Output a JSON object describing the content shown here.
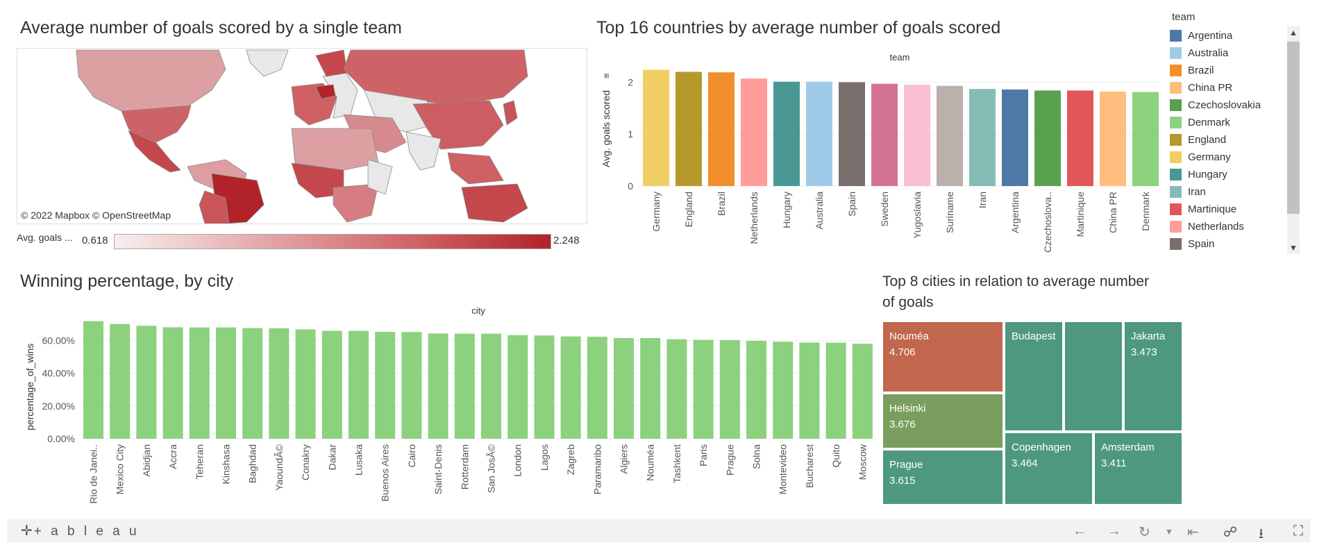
{
  "map": {
    "title": "Average number of goals scored by a single team",
    "credit": "© 2022 Mapbox  © OpenStreetMap",
    "legend_label": "Avg. goals ...",
    "legend_min": "0.618",
    "legend_max": "2.248",
    "colors": {
      "low": "#f8eeee",
      "high": "#b12328",
      "no_data": "#e8e8e8"
    }
  },
  "top_countries": {
    "title": "Top 16 countries by average number of goals scored"
  },
  "legend": {
    "title": "team",
    "items": [
      {
        "label": "Argentina",
        "color": "#4e79a7"
      },
      {
        "label": "Australia",
        "color": "#a0cbe8"
      },
      {
        "label": "Brazil",
        "color": "#f28e2b"
      },
      {
        "label": "China PR",
        "color": "#ffbe7d"
      },
      {
        "label": "Czechoslovakia",
        "color": "#59a14f"
      },
      {
        "label": "Denmark",
        "color": "#8cd17d"
      },
      {
        "label": "England",
        "color": "#b6992d"
      },
      {
        "label": "Germany",
        "color": "#f1ce63"
      },
      {
        "label": "Hungary",
        "color": "#499894"
      },
      {
        "label": "Iran",
        "color": "#86bcb6"
      },
      {
        "label": "Martinique",
        "color": "#e15759"
      },
      {
        "label": "Netherlands",
        "color": "#ff9d9a"
      },
      {
        "label": "Spain",
        "color": "#79706e"
      }
    ]
  },
  "win_pct": {
    "title": "Winning percentage, by city"
  },
  "treemap": {
    "title_line1": "Top 8 cities in relation to average number",
    "title_line2": "of goals",
    "cells": [
      {
        "city": "Nouméa",
        "value": "4.706",
        "color": "#c0674d"
      },
      {
        "city": "Helsinki",
        "value": "3.676",
        "color": "#7a9e5f"
      },
      {
        "city": "Prague",
        "value": "3.615",
        "color": "#4e9880"
      },
      {
        "city": "Budapest",
        "value": "",
        "color": "#4e9880"
      },
      {
        "city": "",
        "value": "",
        "color": "#4e9880"
      },
      {
        "city": "Jakarta",
        "value": "3.473",
        "color": "#4e9880"
      },
      {
        "city": "Copenhagen",
        "value": "3.464",
        "color": "#4e9880"
      },
      {
        "city": "Amsterdam",
        "value": "3.411",
        "color": "#4e9880"
      }
    ]
  },
  "footer": {
    "logo": "+ a b l e a u"
  },
  "chart_data": [
    {
      "type": "bar",
      "title": "Top 16 countries by average number of goals scored",
      "header": "team",
      "xlabel": "",
      "ylabel": "Avg. goals scored",
      "ylim": [
        0,
        2.3
      ],
      "yticks": [
        "0",
        "1",
        "2"
      ],
      "categories": [
        "Germany",
        "England",
        "Brazil",
        "Netherlands",
        "Hungary",
        "Australia",
        "Spain",
        "Sweden",
        "Yugoslavia",
        "Suriname",
        "Iran",
        "Argentina",
        "Czechoslova..",
        "Martinique",
        "China PR",
        "Denmark"
      ],
      "values": [
        2.24,
        2.2,
        2.19,
        2.07,
        2.01,
        2.01,
        2.0,
        1.97,
        1.95,
        1.93,
        1.87,
        1.86,
        1.84,
        1.84,
        1.82,
        1.81
      ],
      "colors": [
        "#f1ce63",
        "#b6992d",
        "#f28e2b",
        "#ff9d9a",
        "#499894",
        "#a0cbe8",
        "#79706e",
        "#d37295",
        "#fabfd2",
        "#bab0ac",
        "#86bcb6",
        "#4e79a7",
        "#59a14f",
        "#e15759",
        "#ffbe7d",
        "#8cd17d"
      ]
    },
    {
      "type": "bar",
      "title": "Winning percentage, by city",
      "header": "city",
      "ylabel": "percentage_of_wins",
      "ylim": [
        0,
        0.72
      ],
      "yticks": [
        "0.00%",
        "20.00%",
        "40.00%",
        "60.00%"
      ],
      "color": "#8cd17d",
      "categories": [
        "Rio de Janei..",
        "Mexico City",
        "Abidjan",
        "Accra",
        "Teheran",
        "Kinshasa",
        "Baghdad",
        "YaoundÃ©",
        "Conakry",
        "Dakar",
        "Lusaka",
        "Buenos Aires",
        "Cairo",
        "Saint-Denis",
        "Rotterdam",
        "San JosÃ©",
        "London",
        "Lagos",
        "Zagreb",
        "Paramaribo",
        "Algiers",
        "Nouméa",
        "Tashkent",
        "Paris",
        "Prague",
        "Solna",
        "Montevideo",
        "Bucharest",
        "Quito",
        "Moscow"
      ],
      "values": [
        0.717,
        0.7,
        0.689,
        0.68,
        0.679,
        0.679,
        0.675,
        0.674,
        0.667,
        0.658,
        0.658,
        0.652,
        0.651,
        0.642,
        0.641,
        0.641,
        0.632,
        0.63,
        0.624,
        0.622,
        0.614,
        0.614,
        0.607,
        0.603,
        0.602,
        0.597,
        0.592,
        0.587,
        0.586,
        0.579
      ]
    }
  ]
}
